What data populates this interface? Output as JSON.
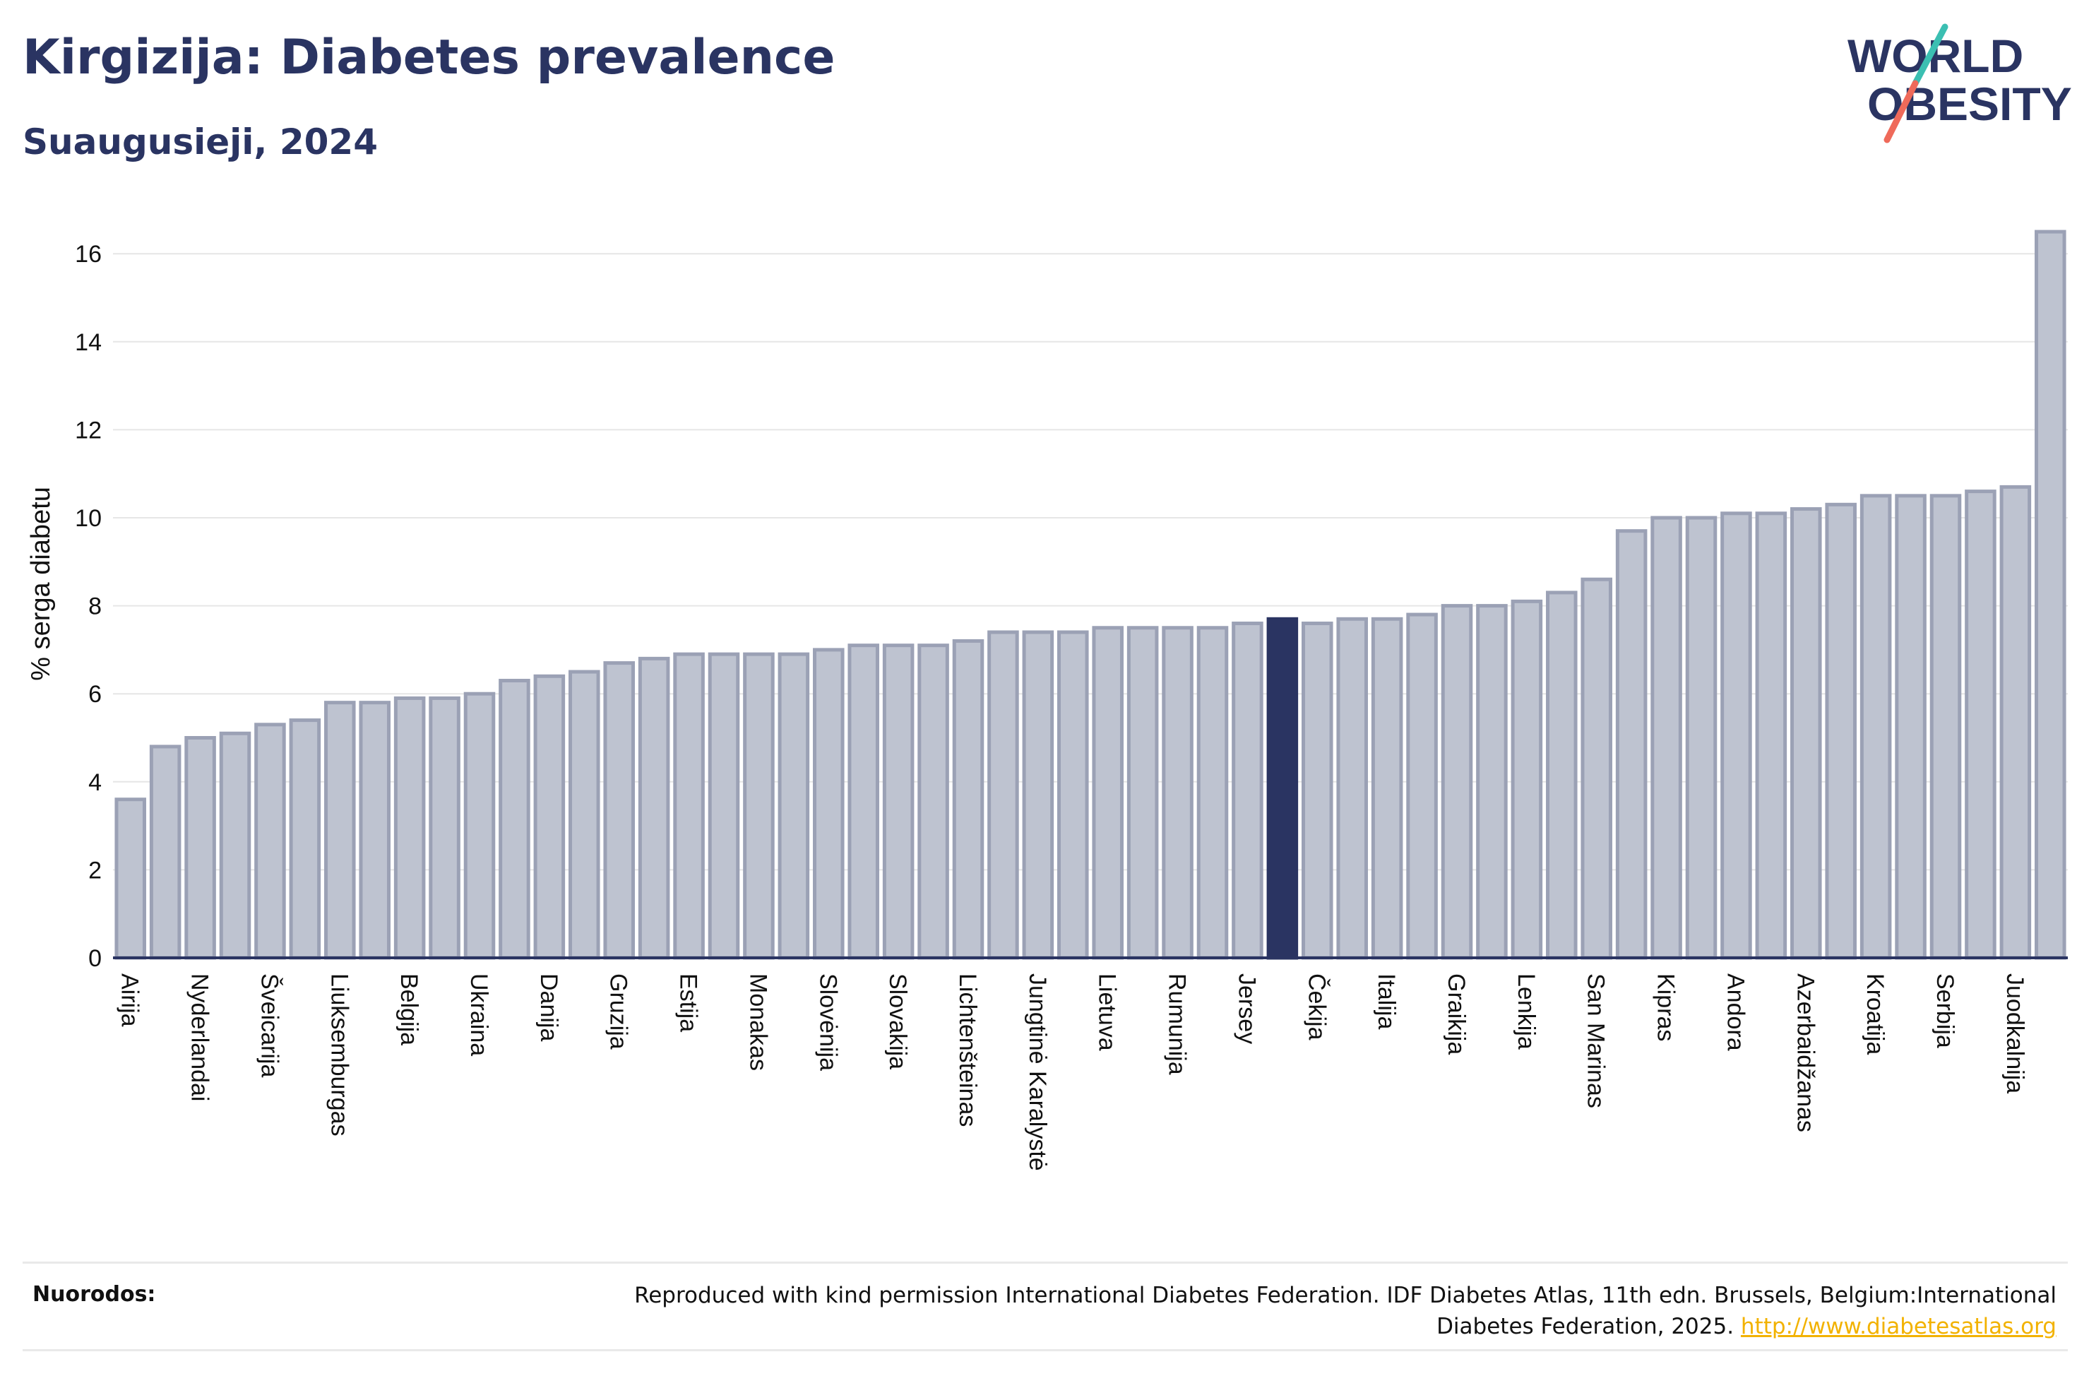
{
  "header": {
    "title": "Kirgizija: Diabetes prevalence",
    "subtitle": "Suaugusieji, 2024",
    "logo_text_line1": "WORLD",
    "logo_text_line2": "OBESITY"
  },
  "colors": {
    "navy": "#2a3462",
    "bar_fill": "#bec3d0",
    "bar_stroke": "#9ba1b5",
    "highlight": "#2a3462",
    "logo_teal": "#3bbfb2",
    "logo_coral": "#ef6a5a",
    "link": "#f2b200"
  },
  "chart_data": {
    "type": "bar",
    "title": "Kirgizija: Diabetes prevalence",
    "subtitle": "Suaugusieji, 2024",
    "xlabel": "",
    "ylabel": "% serga diabetu",
    "ylim": [
      0,
      16.8
    ],
    "yticks": [
      0,
      2,
      4,
      6,
      8,
      10,
      12,
      14,
      16
    ],
    "grid": true,
    "highlight_index": 33,
    "tick_label_indices": [
      0,
      2,
      4,
      6,
      8,
      10,
      12,
      14,
      16,
      18,
      20,
      22,
      24,
      26,
      28,
      30,
      32,
      34,
      36,
      38,
      40,
      42,
      44,
      46,
      48,
      50,
      52,
      54,
      56
    ],
    "categories": [
      "Airija",
      "",
      "Nyderlandai",
      "",
      "Šveicarija",
      "",
      "Liuksemburgas",
      "",
      "Belgija",
      "",
      "Ukraina",
      "",
      "Danija",
      "",
      "Gruzija",
      "",
      "Estija",
      "",
      "Monakas",
      "",
      "Slovėnija",
      "",
      "Slovakija",
      "",
      "Lichtenšteinas",
      "",
      "Jungtinė Karalystė",
      "",
      "Lietuva",
      "",
      "Rumunija",
      "",
      "Jersey",
      "",
      "Čekija",
      "",
      "Italija",
      "",
      "Graikija",
      "",
      "Lenkija",
      "",
      "San Marinas",
      "",
      "Kipras",
      "",
      "Andora",
      "",
      "Azerbaidžanas",
      "",
      "Kroatija",
      "",
      "Serbija",
      "",
      "Juodkalnija",
      ""
    ],
    "values": [
      3.6,
      4.8,
      5.0,
      5.1,
      5.3,
      5.4,
      5.8,
      5.8,
      5.9,
      5.9,
      6.0,
      6.3,
      6.4,
      6.5,
      6.7,
      6.8,
      6.9,
      6.9,
      6.9,
      6.9,
      7.0,
      7.1,
      7.1,
      7.1,
      7.2,
      7.4,
      7.4,
      7.4,
      7.5,
      7.5,
      7.5,
      7.5,
      7.6,
      7.7,
      7.6,
      7.7,
      7.7,
      7.8,
      8.0,
      8.0,
      8.1,
      8.3,
      8.6,
      9.7,
      10.0,
      10.0,
      10.1,
      10.1,
      10.2,
      10.3,
      10.5,
      10.5,
      10.5,
      10.6,
      10.7,
      16.5
    ]
  },
  "footer": {
    "sources_label": "Nuorodos:",
    "sources_text": "Reproduced with kind permission International Diabetes Federation. IDF Diabetes Atlas, 11th edn. Brussels, Belgium:International Diabetes Federation, 2025.",
    "sources_link": "http://www.diabetesatlas.org"
  }
}
